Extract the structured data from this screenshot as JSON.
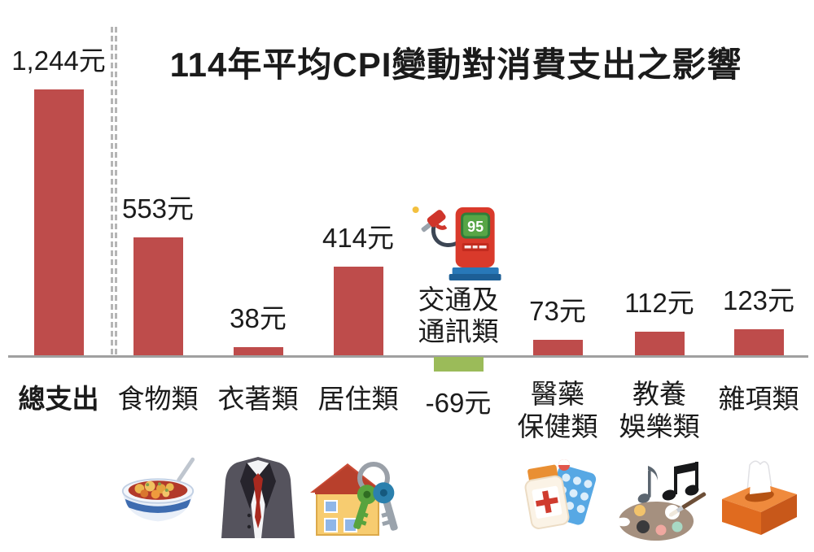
{
  "header": {
    "title": "114年平均CPI變動對消費支出之影響"
  },
  "chart_data": {
    "type": "bar",
    "title": "114年平均CPI變動對消費支出之影響",
    "unit": "元",
    "categories": [
      "總支出",
      "食物類",
      "衣著類",
      "居住類",
      "交通及通訊類",
      "醫藥保健類",
      "教養娛樂類",
      "雜項類"
    ],
    "values": [
      1244,
      553,
      38,
      414,
      -69,
      73,
      112,
      123
    ],
    "value_labels": [
      "1,244元",
      "553元",
      "38元",
      "414元",
      "-69元",
      "73元",
      "112元",
      "123元"
    ],
    "category_display": [
      [
        "總支出"
      ],
      [
        "食物類"
      ],
      [
        "衣著類"
      ],
      [
        "居住類"
      ],
      [
        "交通及",
        "通訊類"
      ],
      [
        "醫藥",
        "保健類"
      ],
      [
        "教養",
        "娛樂類"
      ],
      [
        "雜項類"
      ]
    ],
    "baseline": 0,
    "ylim": [
      -100,
      1300
    ],
    "grid": false,
    "legend": "none",
    "bar_color_positive": "#BE4C4B",
    "bar_color_negative": "#9BBB59",
    "axis_color": "#A0A0A0",
    "separator": {
      "style": "double-dashed",
      "after_category": "總支出",
      "color": "#B5B5B5"
    }
  },
  "icons": {
    "fuel_pump_screen_text": "95",
    "food": "food-bowl-icon",
    "clothing": "suit-tie-icon",
    "housing": "house-keys-icon",
    "transport": "fuel-pump-icon",
    "medical": "medicine-icon",
    "education_entertainment": "music-palette-icon",
    "miscellaneous": "tissue-box-icon"
  }
}
